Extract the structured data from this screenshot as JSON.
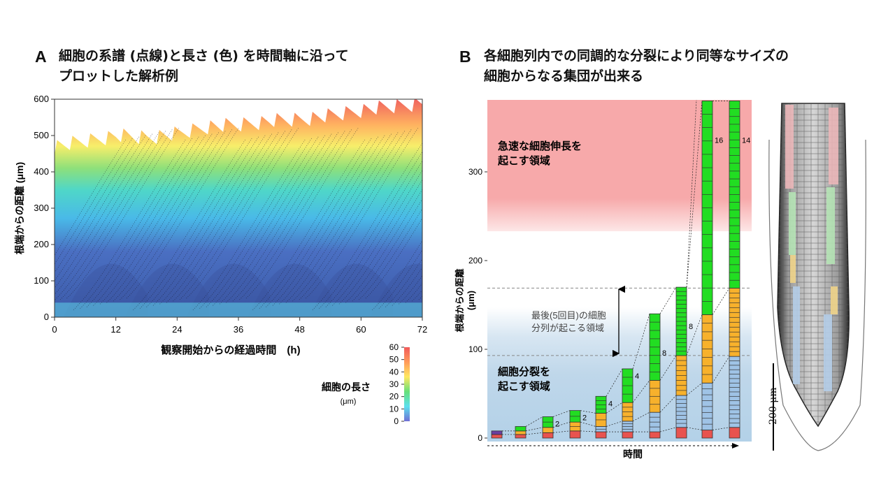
{
  "panel_a": {
    "letter": "A",
    "title_line1": "細胞の系譜 (点線)と長さ (色) を時間軸に沿って",
    "title_line2": "プロットした解析例",
    "chart_data": {
      "type": "heatmap",
      "title": "",
      "xlabel": "観察開始からの経過時間　(h)",
      "ylabel": "根端からの距離 (μm)",
      "x_ticks": [
        0,
        12,
        24,
        36,
        48,
        60,
        72
      ],
      "y_ticks": [
        0,
        100,
        200,
        300,
        400,
        500,
        600
      ],
      "xlim": [
        0,
        72
      ],
      "ylim": [
        0,
        600
      ],
      "color_scale": {
        "label": "細胞の長さ",
        "unit": "(μm)",
        "ticks": [
          0,
          10,
          20,
          30,
          40,
          50,
          60
        ],
        "range": [
          0,
          60
        ],
        "colors": [
          "#6f6fd6",
          "#5ce0ee",
          "#66e07a",
          "#ffe860",
          "#ff9a5a",
          "#f15a5a"
        ]
      },
      "growth_front_um": [
        {
          "x": 0,
          "y": 470
        },
        {
          "x": 6,
          "y": 485
        },
        {
          "x": 12,
          "y": 500
        },
        {
          "x": 18,
          "y": 495
        },
        {
          "x": 24,
          "y": 505
        },
        {
          "x": 30,
          "y": 525
        },
        {
          "x": 36,
          "y": 530
        },
        {
          "x": 42,
          "y": 540
        },
        {
          "x": 48,
          "y": 545
        },
        {
          "x": 54,
          "y": 555
        },
        {
          "x": 60,
          "y": 570
        },
        {
          "x": 66,
          "y": 580
        },
        {
          "x": 72,
          "y": 590
        }
      ]
    }
  },
  "panel_b": {
    "letter": "B",
    "title_line1": "各細胞列内での同調的な分裂により同等なサイズの",
    "title_line2": "細胞からなる集団が出来る",
    "chart_data": {
      "type": "bar",
      "xlabel": "時間",
      "ylabel_line1": "根端からの距離",
      "ylabel_line2": "(μm)",
      "y_ticks": [
        0,
        100,
        200,
        300
      ],
      "ylim": [
        0,
        380
      ],
      "zone_elongation": [
        "急速な細胞伸長を",
        "起こす領域"
      ],
      "zone_last_division": [
        "最後(5回目)の細胞",
        "分列が起こる領域"
      ],
      "zone_division": [
        "細胞分裂を",
        "起こす領域"
      ],
      "zone_bounds_um": {
        "division_top": 93,
        "last_division_top": 169,
        "elongation_bottom": 235
      },
      "colors": {
        "purple": "#6a3fa0",
        "red": "#e8534f",
        "orange": "#f7b12c",
        "blue": "#9fc3e6",
        "green": "#22dd22"
      },
      "columns": [
        {
          "segments": [
            {
              "c": "red",
              "n": 1,
              "h": 4
            },
            {
              "c": "purple",
              "n": 1,
              "h": 4
            }
          ]
        },
        {
          "segments": [
            {
              "c": "red",
              "n": 1,
              "h": 4
            },
            {
              "c": "orange",
              "n": 1,
              "h": 4
            },
            {
              "c": "green",
              "n": 1,
              "h": 5
            }
          ]
        },
        {
          "segments": [
            {
              "c": "red",
              "n": 1,
              "h": 6
            },
            {
              "c": "orange",
              "n": 1,
              "h": 6
            },
            {
              "c": "green",
              "n": 2,
              "h": 12
            }
          ],
          "label": "2"
        },
        {
          "segments": [
            {
              "c": "red",
              "n": 1,
              "h": 8
            },
            {
              "c": "orange",
              "n": 2,
              "h": 10
            },
            {
              "c": "green",
              "n": 2,
              "h": 13
            }
          ],
          "label": "2"
        },
        {
          "segments": [
            {
              "c": "red",
              "n": 1,
              "h": 7
            },
            {
              "c": "blue",
              "n": 2,
              "h": 6
            },
            {
              "c": "orange",
              "n": 2,
              "h": 15
            },
            {
              "c": "green",
              "n": 4,
              "h": 19
            }
          ],
          "label": "4"
        },
        {
          "segments": [
            {
              "c": "red",
              "n": 1,
              "h": 7
            },
            {
              "c": "blue",
              "n": 4,
              "h": 12
            },
            {
              "c": "orange",
              "n": 4,
              "h": 21
            },
            {
              "c": "green",
              "n": 4,
              "h": 38
            }
          ],
          "label": "4"
        },
        {
          "segments": [
            {
              "c": "red",
              "n": 1,
              "h": 7
            },
            {
              "c": "blue",
              "n": 4,
              "h": 22
            },
            {
              "c": "orange",
              "n": 4,
              "h": 36
            },
            {
              "c": "green",
              "n": 8,
              "h": 75
            }
          ],
          "label": "8"
        },
        {
          "segments": [
            {
              "c": "red",
              "n": 1,
              "h": 12
            },
            {
              "c": "blue",
              "n": 8,
              "h": 36
            },
            {
              "c": "orange",
              "n": 8,
              "h": 45
            },
            {
              "c": "green",
              "n": 16,
              "h": 77
            }
          ],
          "label": "8"
        },
        {
          "segments": [
            {
              "c": "red",
              "n": 1,
              "h": 9
            },
            {
              "c": "blue",
              "n": 8,
              "h": 53
            },
            {
              "c": "orange",
              "n": 8,
              "h": 77
            },
            {
              "c": "green",
              "n": 16,
              "h": 241
            }
          ],
          "label": "16"
        },
        {
          "segments": [
            {
              "c": "red",
              "n": 1,
              "h": 12
            },
            {
              "c": "blue",
              "n": 16,
              "h": 80
            },
            {
              "c": "orange",
              "n": 14,
              "h": 77
            },
            {
              "c": "green",
              "n": 24,
              "h": 211
            }
          ],
          "label": "14"
        }
      ]
    }
  },
  "micrograph": {
    "scale_label": "200 μm"
  }
}
